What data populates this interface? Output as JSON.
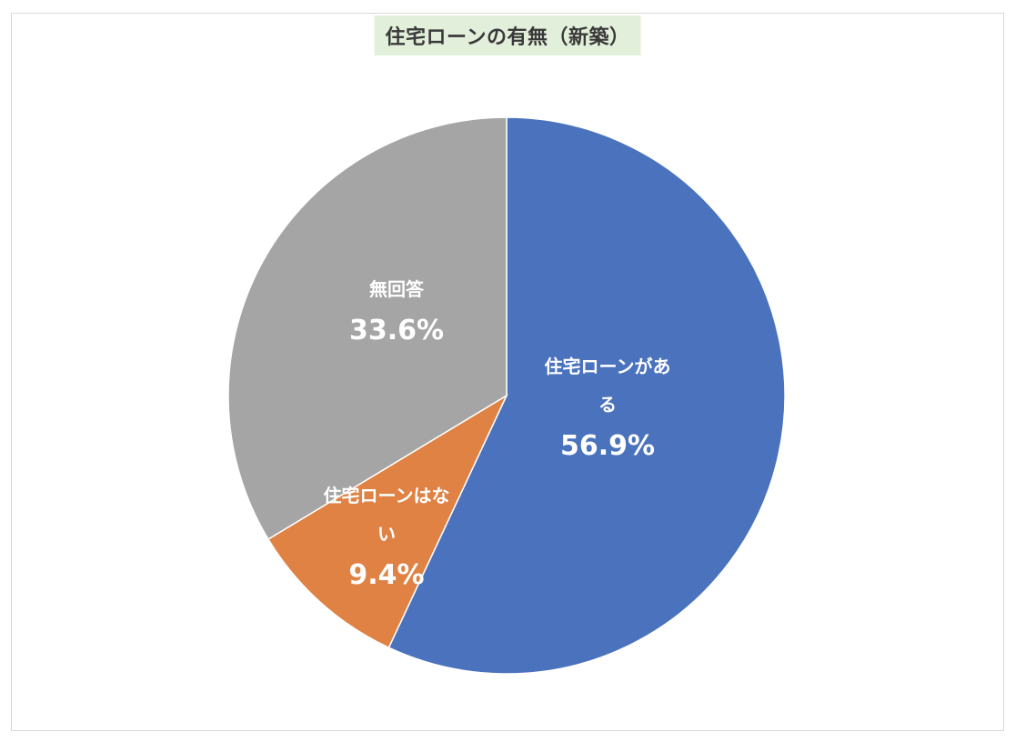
{
  "chart_data": {
    "type": "pie",
    "title": "住宅ローンの有無（新築）",
    "title_background": "#e2efda",
    "slices": [
      {
        "name_lines": [
          "住宅ローンがあ",
          "る"
        ],
        "value": 56.9,
        "value_label": "56.9%",
        "color": "#4a72bd"
      },
      {
        "name_lines": [
          "住宅ローンはな",
          "い"
        ],
        "value": 9.4,
        "value_label": "9.4%",
        "color": "#df8244"
      },
      {
        "name_lines": [
          "無回答"
        ],
        "value": 33.6,
        "value_label": "33.6%",
        "color": "#a5a5a5"
      }
    ],
    "start_angle": "12 o'clock",
    "direction": "clockwise",
    "legend": "none"
  }
}
